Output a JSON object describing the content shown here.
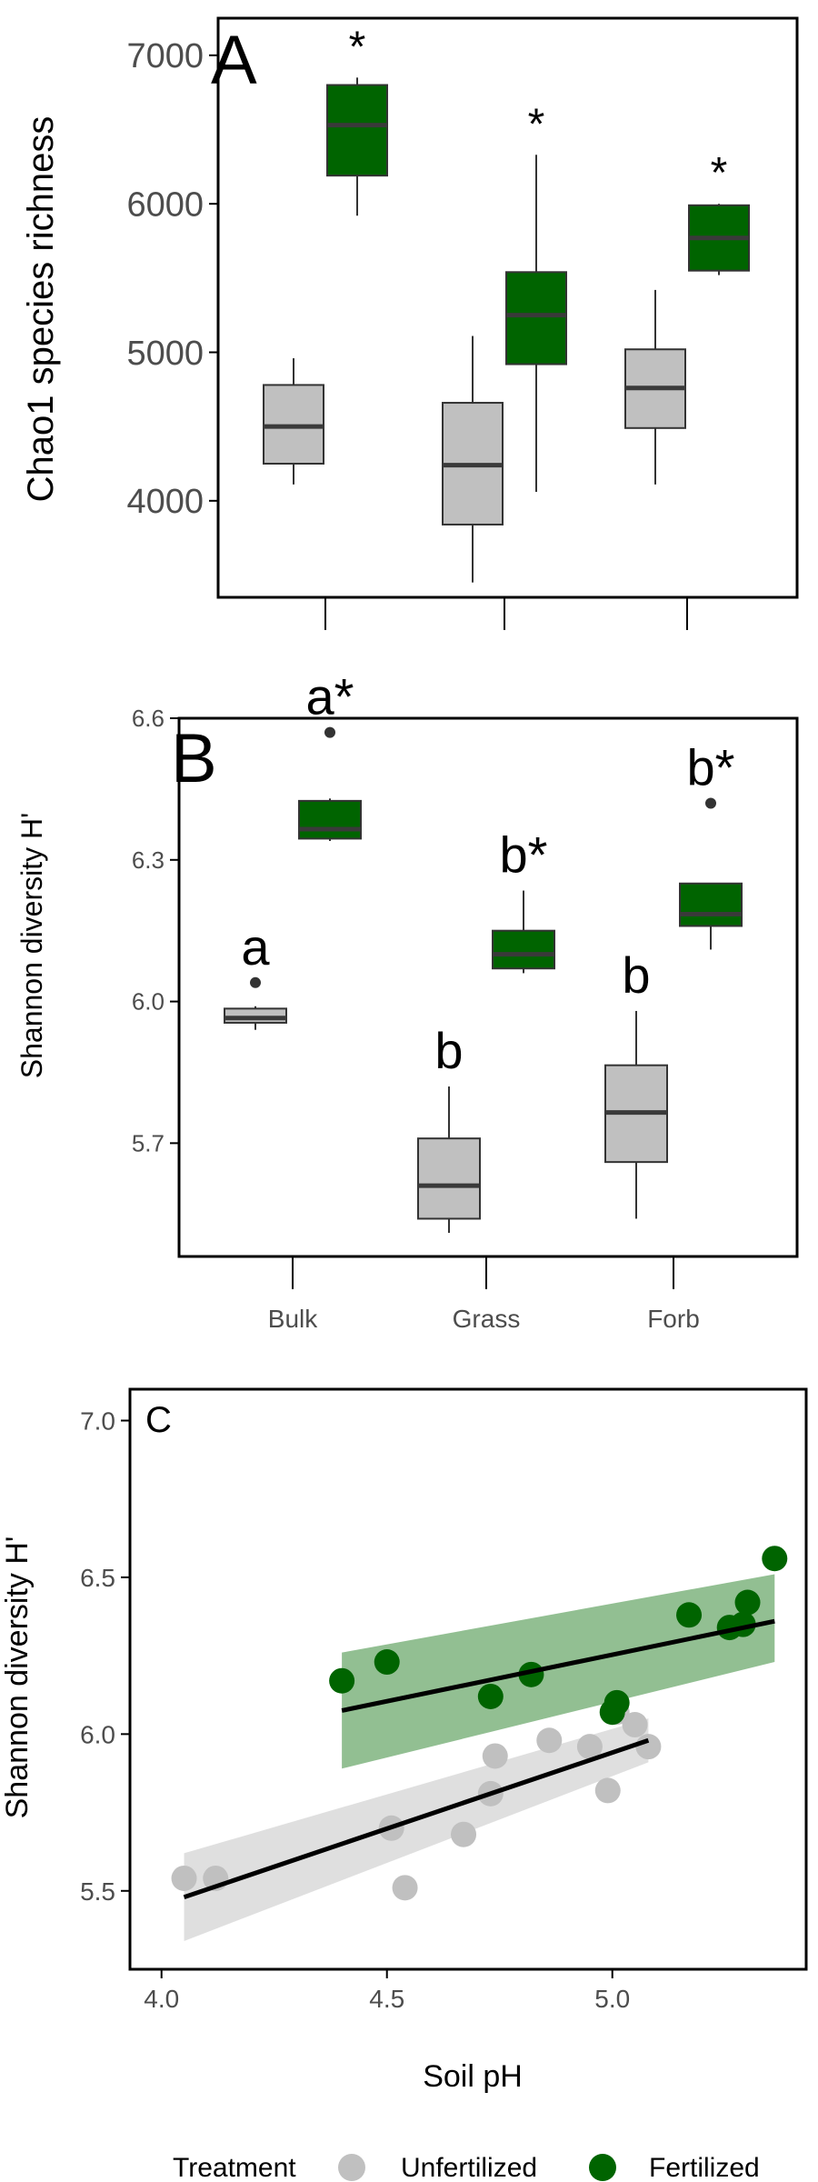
{
  "colors": {
    "unfertilized": "#c0c0c0",
    "fertilized": "#006400",
    "ribbon_unfertilized": "#d9d9d9",
    "ribbon_fertilized": "#7fb47f",
    "median": "#3a3a3a",
    "axis": "#000000",
    "tick_text": "#4d4d4d"
  },
  "chart_data": [
    {
      "panel": "A",
      "type": "boxplot",
      "ylabel": "Chao1 species richness",
      "ylim": [
        3350,
        7250
      ],
      "yticks": [
        4000,
        5000,
        6000,
        7000
      ],
      "categories": [
        "Bulk",
        "Grass",
        "Forb"
      ],
      "series": [
        {
          "name": "Unfertilized",
          "boxes": [
            {
              "min": 4110,
              "q1": 4250,
              "median": 4500,
              "q3": 4780,
              "max": 4960,
              "outliers": []
            },
            {
              "min": 3450,
              "q1": 3840,
              "median": 4240,
              "q3": 4660,
              "max": 5110,
              "outliers": []
            },
            {
              "min": 4110,
              "q1": 4490,
              "median": 4760,
              "q3": 5020,
              "max": 5420,
              "outliers": []
            }
          ]
        },
        {
          "name": "Fertilized",
          "boxes": [
            {
              "min": 5920,
              "q1": 6190,
              "median": 6530,
              "q3": 6800,
              "max": 6850,
              "outliers": []
            },
            {
              "min": 4060,
              "q1": 4920,
              "median": 5250,
              "q3": 5540,
              "max": 6330,
              "outliers": []
            },
            {
              "min": 5520,
              "q1": 5550,
              "median": 5770,
              "q3": 5990,
              "max": 6000,
              "outliers": []
            }
          ]
        }
      ],
      "annotations": [
        {
          "category": "Bulk",
          "series": "Fertilized",
          "text": "*"
        },
        {
          "category": "Grass",
          "series": "Fertilized",
          "text": "*"
        },
        {
          "category": "Forb",
          "series": "Fertilized",
          "text": "*"
        }
      ]
    },
    {
      "panel": "B",
      "type": "boxplot",
      "ylabel": "Shannon diversity H'",
      "ylim": [
        5.46,
        6.6
      ],
      "yticks": [
        "5.7",
        "6.0",
        "6.3",
        "6.6"
      ],
      "categories": [
        "Bulk",
        "Grass",
        "Forb"
      ],
      "series": [
        {
          "name": "Unfertilized",
          "boxes": [
            {
              "min": 5.94,
              "q1": 5.955,
              "median": 5.965,
              "q3": 5.985,
              "max": 5.99,
              "outliers": [
                6.04
              ]
            },
            {
              "min": 5.51,
              "q1": 5.54,
              "median": 5.61,
              "q3": 5.71,
              "max": 5.82,
              "outliers": []
            },
            {
              "min": 5.54,
              "q1": 5.66,
              "median": 5.765,
              "q3": 5.865,
              "max": 5.98,
              "outliers": []
            }
          ]
        },
        {
          "name": "Fertilized",
          "boxes": [
            {
              "min": 6.34,
              "q1": 6.345,
              "median": 6.365,
              "q3": 6.425,
              "max": 6.43,
              "outliers": [
                6.57
              ]
            },
            {
              "min": 6.06,
              "q1": 6.07,
              "median": 6.1,
              "q3": 6.15,
              "max": 6.235,
              "outliers": []
            },
            {
              "min": 6.11,
              "q1": 6.16,
              "median": 6.185,
              "q3": 6.25,
              "max": 6.25,
              "outliers": [
                6.42
              ]
            }
          ]
        }
      ],
      "annotations": [
        {
          "category": "Bulk",
          "series": "Unfertilized",
          "text": "a"
        },
        {
          "category": "Bulk",
          "series": "Fertilized",
          "text": "a*"
        },
        {
          "category": "Grass",
          "series": "Unfertilized",
          "text": "b"
        },
        {
          "category": "Grass",
          "series": "Fertilized",
          "text": "b*"
        },
        {
          "category": "Forb",
          "series": "Unfertilized",
          "text": "b"
        },
        {
          "category": "Forb",
          "series": "Fertilized",
          "text": "b*"
        }
      ]
    },
    {
      "panel": "C",
      "type": "scatter",
      "xlabel": "Soil pH",
      "ylabel": "Shannon diversity H'",
      "xlim": [
        3.93,
        5.43
      ],
      "ylim": [
        5.25,
        7.1
      ],
      "xticks": [
        "4.0",
        "4.5",
        "5.0"
      ],
      "yticks": [
        "5.5",
        "6.0",
        "6.5",
        "7.0"
      ],
      "series": [
        {
          "name": "Unfertilized",
          "x": [
            4.05,
            4.12,
            4.51,
            4.54,
            4.67,
            4.73,
            4.74,
            4.86,
            4.95,
            4.99,
            5.01,
            5.05,
            5.08
          ],
          "y": [
            5.54,
            5.54,
            5.7,
            5.51,
            5.68,
            5.81,
            5.93,
            5.98,
            5.96,
            5.82,
            6.07,
            6.03,
            5.96
          ],
          "fit": {
            "x": [
              4.05,
              5.08
            ],
            "y": [
              5.48,
              5.98
            ],
            "ci_lower": [
              5.34,
              5.91
            ],
            "ci_upper": [
              5.62,
              6.05
            ]
          }
        },
        {
          "name": "Fertilized",
          "x": [
            4.4,
            4.5,
            4.73,
            4.82,
            5.0,
            5.01,
            5.17,
            5.26,
            5.29,
            5.3,
            5.36
          ],
          "y": [
            6.17,
            6.23,
            6.12,
            6.19,
            6.07,
            6.1,
            6.38,
            6.34,
            6.35,
            6.42,
            6.56
          ],
          "fit": {
            "x": [
              4.4,
              5.36
            ],
            "y": [
              6.075,
              6.36
            ],
            "ci_lower": [
              5.89,
              6.23
            ],
            "ci_upper": [
              6.26,
              6.51
            ]
          }
        }
      ]
    }
  ],
  "labels": {
    "panel_a": "A",
    "panel_b": "B",
    "panel_c": "C",
    "legend_title": "Treatment",
    "legend_unfertilized": "Unfertilized",
    "legend_fertilized": "Fertilized"
  }
}
